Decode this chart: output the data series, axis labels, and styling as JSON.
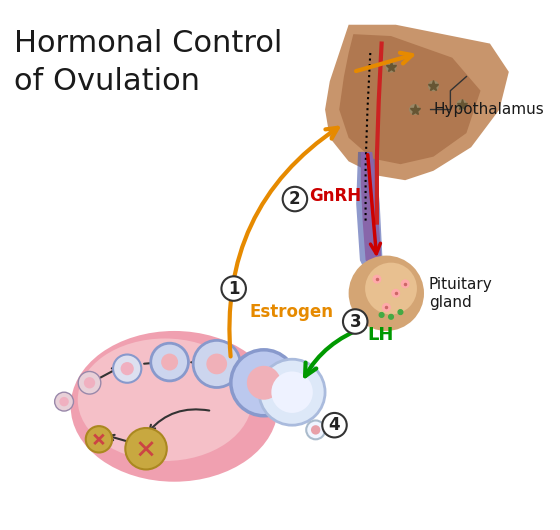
{
  "title_line1": "Hormonal Control",
  "title_line2": "of Ovulation",
  "title_color": "#1a1a1a",
  "title_fontsize": 22,
  "background_color": "#ffffff",
  "label_hypothalamus": "Hypothalamus",
  "label_pituitary": "Pituitary\ngland",
  "label_gnrh": "GnRH",
  "label_lh": "LH",
  "label_estrogen": "Estrogen",
  "label_gnrh_color": "#cc0000",
  "label_lh_color": "#009900",
  "label_estrogen_color": "#e68a00",
  "arrow_orange_color": "#e68a00",
  "arrow_gnrh_color": "#cc0000",
  "arrow_lh_color": "#009900",
  "hypothalamus_color": "#c8956c",
  "pituitary_color": "#d4a574",
  "ovary_outer_color": "#f0a0b0",
  "ovary_inner_color": "#f5c0c8",
  "follicle_blue_color": "#8899cc",
  "follicle_pink_color": "#e08080",
  "corpus_luteum_color": "#c8a840"
}
